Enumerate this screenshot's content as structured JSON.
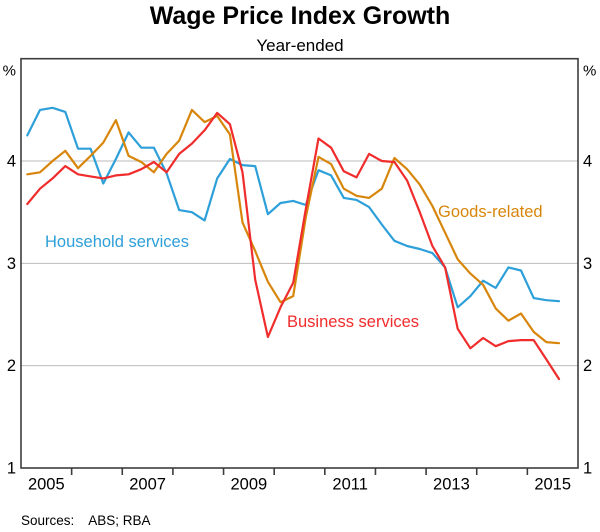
{
  "header": {
    "title": "Wage Price Index Growth",
    "subtitle": "Year-ended"
  },
  "footer": {
    "sources_label": "Sources:",
    "sources_value": "ABS; RBA"
  },
  "chart_data": {
    "type": "line",
    "title": "Wage Price Index Growth",
    "subtitle": "Year-ended",
    "unit_left": "%",
    "unit_right": "%",
    "ylim": [
      1,
      5
    ],
    "yticks": [
      1,
      2,
      3,
      4
    ],
    "gridline_values": [
      2,
      3,
      4
    ],
    "grid": true,
    "x_axis_start_year": 2005,
    "x_axis_end_year": 2016,
    "x_tick_years": [
      2006,
      2007,
      2008,
      2009,
      2010,
      2011,
      2012,
      2013,
      2014,
      2015
    ],
    "x_label_years": [
      "2005",
      "2007",
      "2009",
      "2011",
      "2013",
      "2015"
    ],
    "legend_position": "inline-annotations",
    "quarters": [
      "2005Q1",
      "2005Q2",
      "2005Q3",
      "2005Q4",
      "2006Q1",
      "2006Q2",
      "2006Q3",
      "2006Q4",
      "2007Q1",
      "2007Q2",
      "2007Q3",
      "2007Q4",
      "2008Q1",
      "2008Q2",
      "2008Q3",
      "2008Q4",
      "2009Q1",
      "2009Q2",
      "2009Q3",
      "2009Q4",
      "2010Q1",
      "2010Q2",
      "2010Q3",
      "2010Q4",
      "2011Q1",
      "2011Q2",
      "2011Q3",
      "2011Q4",
      "2012Q1",
      "2012Q2",
      "2012Q3",
      "2012Q4",
      "2013Q1",
      "2013Q2",
      "2013Q3",
      "2013Q4",
      "2014Q1",
      "2014Q2",
      "2014Q3",
      "2014Q4",
      "2015Q1",
      "2015Q2",
      "2015Q3"
    ],
    "series": [
      {
        "name": "Household services",
        "color": "#2D9FD9",
        "values": [
          4.25,
          4.5,
          4.52,
          4.48,
          4.12,
          4.12,
          3.78,
          4.02,
          4.28,
          4.13,
          4.13,
          3.88,
          3.52,
          3.5,
          3.42,
          3.83,
          4.02,
          3.96,
          3.95,
          3.48,
          3.59,
          3.61,
          3.57,
          3.91,
          3.86,
          3.64,
          3.62,
          3.55,
          3.38,
          3.22,
          3.17,
          3.14,
          3.1,
          2.96,
          2.57,
          2.68,
          2.83,
          2.76,
          2.96,
          2.93,
          2.66,
          2.64,
          2.63
        ]
      },
      {
        "name": "Goods-related",
        "color": "#D8860B",
        "values": [
          3.87,
          3.89,
          4.0,
          4.1,
          3.93,
          4.05,
          4.18,
          4.4,
          4.05,
          3.99,
          3.89,
          4.07,
          4.2,
          4.5,
          4.38,
          4.44,
          4.26,
          3.4,
          3.12,
          2.82,
          2.62,
          2.68,
          3.45,
          4.04,
          3.97,
          3.73,
          3.66,
          3.64,
          3.73,
          4.03,
          3.92,
          3.77,
          3.56,
          3.3,
          3.04,
          2.9,
          2.79,
          2.56,
          2.44,
          2.51,
          2.33,
          2.23,
          2.22
        ]
      },
      {
        "name": "Business services",
        "color": "#F02C2C",
        "values": [
          3.58,
          3.73,
          3.83,
          3.95,
          3.87,
          3.85,
          3.83,
          3.86,
          3.87,
          3.92,
          3.99,
          3.89,
          4.07,
          4.17,
          4.3,
          4.47,
          4.36,
          3.89,
          2.84,
          2.28,
          2.57,
          2.81,
          3.53,
          4.22,
          4.13,
          3.9,
          3.84,
          4.07,
          4.0,
          3.99,
          3.81,
          3.5,
          3.17,
          2.96,
          2.36,
          2.17,
          2.27,
          2.19,
          2.24,
          2.25,
          2.25,
          2.06,
          1.87
        ]
      }
    ],
    "annotation_colors": {
      "axis_line": "#3d3d3d",
      "gridline": "#bbbbbb",
      "text": "#000000"
    }
  }
}
